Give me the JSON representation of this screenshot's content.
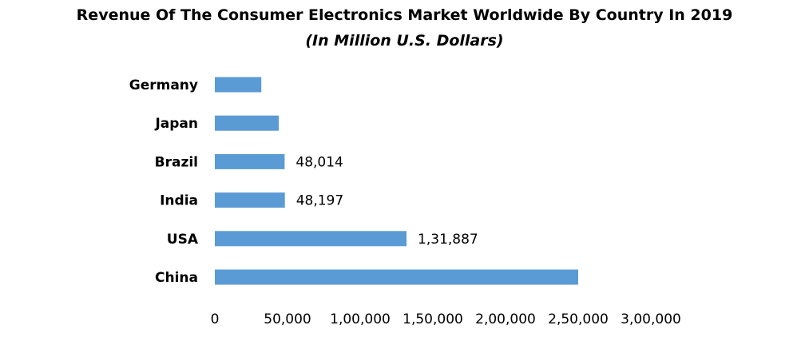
{
  "chart_data": {
    "type": "bar",
    "orientation": "horizontal",
    "title": "Revenue Of The Consumer Electronics Market Worldwide By Country In 2019",
    "subtitle": "(In Million U.S. Dollars)",
    "categories": [
      "Germany",
      "Japan",
      "Brazil",
      "India",
      "USA",
      "China"
    ],
    "values": [
      32000,
      44000,
      48014,
      48197,
      131887,
      250000
    ],
    "data_labels": [
      "",
      "",
      "48,014",
      "48,197",
      "1,31,887",
      ""
    ],
    "xlim": [
      0,
      300000
    ],
    "x_ticks": [
      "0",
      "50,000",
      "1,00,000",
      "1,50,000",
      "2,00,000",
      "2,50,000",
      "3,00,000"
    ],
    "xlabel": "",
    "ylabel": "",
    "grid": false,
    "legend": "none",
    "bar_color": "#5b9bd5"
  }
}
